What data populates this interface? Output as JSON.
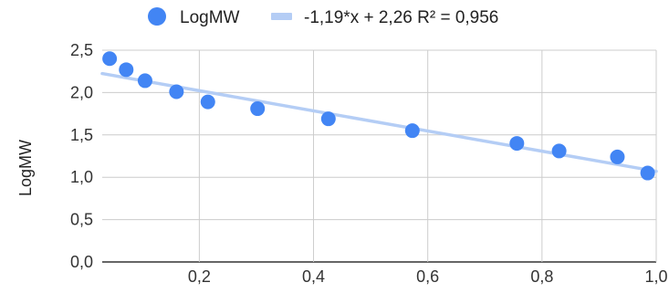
{
  "chart_data": {
    "type": "scatter",
    "ylabel": "LogMW",
    "xlabel": "",
    "title": "",
    "xlim": [
      0.03,
      1.0
    ],
    "ylim": [
      0.0,
      2.5
    ],
    "x_ticks": [
      0.2,
      0.4,
      0.6,
      0.8,
      1.0
    ],
    "x_tick_labels": [
      "0,2",
      "0,4",
      "0,6",
      "0,8",
      "1,0"
    ],
    "y_ticks": [
      0.0,
      0.5,
      1.0,
      1.5,
      2.0,
      2.5
    ],
    "y_tick_labels": [
      "0,0",
      "0,5",
      "1,0",
      "1,5",
      "2,0",
      "2,5"
    ],
    "grid": true,
    "legend_position": "top",
    "series": [
      {
        "name": "LogMW",
        "color": "#4285f4",
        "points": [
          {
            "x": 0.043,
            "y": 2.4
          },
          {
            "x": 0.072,
            "y": 2.27
          },
          {
            "x": 0.105,
            "y": 2.14
          },
          {
            "x": 0.16,
            "y": 2.01
          },
          {
            "x": 0.215,
            "y": 1.89
          },
          {
            "x": 0.302,
            "y": 1.81
          },
          {
            "x": 0.426,
            "y": 1.69
          },
          {
            "x": 0.573,
            "y": 1.55
          },
          {
            "x": 0.756,
            "y": 1.4
          },
          {
            "x": 0.83,
            "y": 1.31
          },
          {
            "x": 0.932,
            "y": 1.24
          },
          {
            "x": 0.985,
            "y": 1.05
          }
        ]
      }
    ],
    "trendline": {
      "name": "-1,19*x + 2,26 R² = 0,956",
      "color": "#b4cdf5",
      "slope": -1.19,
      "intercept": 2.26
    }
  }
}
